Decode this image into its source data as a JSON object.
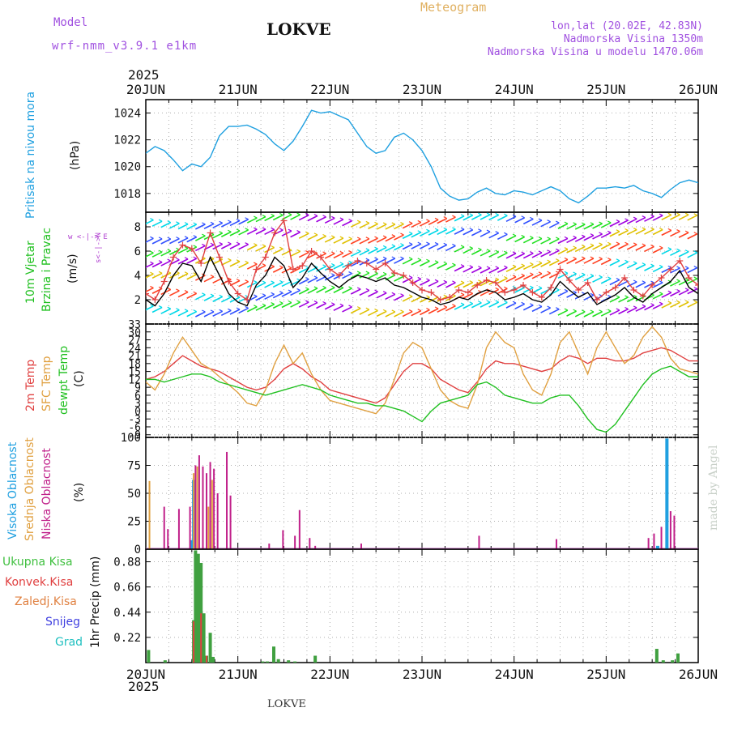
{
  "header": {
    "model_label": "Model",
    "model_name": "wrf-nmm_v3.9.1 e1km",
    "title": "LOKVE",
    "meteogram": "Meteogram",
    "lonlat": "lon,lat (20.02E, 42.83N)",
    "altitude": "Nadmorska Visina 1350m",
    "model_altitude": "Nadmorska Visina u modelu 1470.06m",
    "footer_station": "LOKVE",
    "watermark": "made by Angel",
    "year": "2025"
  },
  "colors": {
    "pressure": "#1fa0e0",
    "wind_speed": "#000000",
    "gust": "#e04040",
    "t2m": "#e04040",
    "tsfc": "#e0a040",
    "dewpt": "#20c020",
    "cloud_high": "#20a0e0",
    "cloud_mid": "#e0a040",
    "cloud_low": "#c0208a",
    "precip_total": "#40a040",
    "precip_conv": "#e04040",
    "grid": "#b0b0b0"
  },
  "panel_labels": {
    "pressure": [
      "Pritisak na nivou mora"
    ],
    "pressure_unit": "(hPa)",
    "wind": [
      "10m Vjetar",
      "Brzina i Pravac"
    ],
    "wind_unit": "(m/s)",
    "wind_rose": "w <-|-> E",
    "wind_rose2": "s<-|->N",
    "temp": [
      "2m Temp",
      "SFC Temp",
      "dewpt Temp"
    ],
    "temp_unit": "(C)",
    "cloud": [
      "Visoka Oblacnost",
      "Srednja Oblacnost",
      "Niska Oblacnost"
    ],
    "cloud_unit": "(%)",
    "precip_legend": [
      "Ukupna Kisa",
      "Konvek.Kisa",
      "Zaledj.Kisa",
      "Snijeg",
      "Grad"
    ],
    "precip_unit": "1hr Precip (mm)"
  },
  "chart_data": [
    {
      "type": "line",
      "name": "pressure",
      "x_unit": "days since 20JUN 00 UTC",
      "x_ticks": [
        "20JUN",
        "21JUN",
        "22JUN",
        "23JUN",
        "24JUN",
        "25JUN",
        "26JUN"
      ],
      "ylabel": "(hPa)",
      "ylim": [
        1016.6,
        1025.0
      ],
      "y_ticks": [
        1018,
        1020,
        1022,
        1024
      ],
      "series": [
        {
          "name": "Pritisak na nivou mora",
          "x": [
            0,
            0.1,
            0.2,
            0.3,
            0.4,
            0.5,
            0.6,
            0.7,
            0.8,
            0.9,
            1.0,
            1.1,
            1.2,
            1.3,
            1.4,
            1.5,
            1.6,
            1.7,
            1.8,
            1.9,
            2.0,
            2.1,
            2.2,
            2.3,
            2.4,
            2.5,
            2.6,
            2.7,
            2.8,
            2.9,
            3.0,
            3.1,
            3.2,
            3.3,
            3.4,
            3.5,
            3.6,
            3.7,
            3.8,
            3.9,
            4.0,
            4.1,
            4.2,
            4.3,
            4.4,
            4.5,
            4.6,
            4.7,
            4.8,
            4.9,
            5.0,
            5.1,
            5.2,
            5.3,
            5.4,
            5.5,
            5.6,
            5.7,
            5.8,
            5.9,
            6.0
          ],
          "values": [
            1021.0,
            1021.5,
            1021.2,
            1020.5,
            1019.7,
            1020.2,
            1020.0,
            1020.7,
            1022.3,
            1023.0,
            1023.0,
            1023.1,
            1022.8,
            1022.4,
            1021.7,
            1021.2,
            1021.9,
            1023.0,
            1024.2,
            1024.0,
            1024.1,
            1023.8,
            1023.5,
            1022.5,
            1021.5,
            1021.0,
            1021.2,
            1022.2,
            1022.5,
            1022.0,
            1021.2,
            1020.0,
            1018.4,
            1017.8,
            1017.5,
            1017.6,
            1018.1,
            1018.4,
            1018.0,
            1017.9,
            1018.2,
            1018.1,
            1017.9,
            1018.2,
            1018.5,
            1018.2,
            1017.6,
            1017.3,
            1017.8,
            1018.4,
            1018.4,
            1018.5,
            1018.4,
            1018.6,
            1018.2,
            1018.0,
            1017.7,
            1018.3,
            1018.8,
            1019.0,
            1018.8
          ]
        }
      ]
    },
    {
      "type": "line",
      "name": "wind",
      "x_ticks": [
        "20JUN",
        "21JUN",
        "22JUN",
        "23JUN",
        "24JUN",
        "25JUN",
        "26JUN"
      ],
      "ylabel": "(m/s)",
      "ylim": [
        0,
        9.2
      ],
      "y_ticks": [
        2,
        4,
        6,
        8
      ],
      "series": [
        {
          "name": "10m Vjetar brzina",
          "x": [
            0,
            0.1,
            0.2,
            0.3,
            0.4,
            0.5,
            0.6,
            0.7,
            0.8,
            0.9,
            1.0,
            1.1,
            1.2,
            1.3,
            1.4,
            1.5,
            1.6,
            1.7,
            1.8,
            1.9,
            2.0,
            2.1,
            2.2,
            2.3,
            2.4,
            2.5,
            2.6,
            2.7,
            2.8,
            2.9,
            3.0,
            3.1,
            3.2,
            3.3,
            3.4,
            3.5,
            3.6,
            3.7,
            3.8,
            3.9,
            4.0,
            4.1,
            4.2,
            4.3,
            4.4,
            4.5,
            4.6,
            4.7,
            4.8,
            4.9,
            5.0,
            5.1,
            5.2,
            5.3,
            5.4,
            5.5,
            5.6,
            5.7,
            5.8,
            5.9,
            6.0
          ],
          "values": [
            2.0,
            1.5,
            2.5,
            4.0,
            5.0,
            4.8,
            3.5,
            5.5,
            4.0,
            2.5,
            1.8,
            1.5,
            3.2,
            4.0,
            5.5,
            4.8,
            3.0,
            3.8,
            5.0,
            4.2,
            3.5,
            3.0,
            3.6,
            4.0,
            3.8,
            3.5,
            3.8,
            3.2,
            3.0,
            2.6,
            2.2,
            2.0,
            1.6,
            1.8,
            2.2,
            2.0,
            2.5,
            2.8,
            2.6,
            2.0,
            2.2,
            2.5,
            2.0,
            1.8,
            2.4,
            3.5,
            2.8,
            2.2,
            2.6,
            1.6,
            2.0,
            2.4,
            3.0,
            2.2,
            1.8,
            2.5,
            3.0,
            3.5,
            4.4,
            3.0,
            2.5
          ]
        },
        {
          "name": "udari vjetra",
          "x": [
            0,
            0.1,
            0.2,
            0.3,
            0.4,
            0.5,
            0.6,
            0.7,
            0.8,
            0.9,
            1.0,
            1.1,
            1.2,
            1.3,
            1.4,
            1.5,
            1.6,
            1.7,
            1.8,
            1.9,
            2.0,
            2.1,
            2.2,
            2.3,
            2.4,
            2.5,
            2.6,
            2.7,
            2.8,
            2.9,
            3.0,
            3.1,
            3.2,
            3.3,
            3.4,
            3.5,
            3.6,
            3.7,
            3.8,
            3.9,
            4.0,
            4.1,
            4.2,
            4.3,
            4.4,
            4.5,
            4.6,
            4.7,
            4.8,
            4.9,
            5.0,
            5.1,
            5.2,
            5.3,
            5.4,
            5.5,
            5.6,
            5.7,
            5.8,
            5.9,
            6.0
          ],
          "values": [
            2.5,
            2.0,
            3.5,
            5.5,
            6.5,
            6.2,
            5.0,
            7.5,
            5.5,
            3.5,
            2.5,
            2.0,
            4.5,
            5.5,
            7.5,
            8.5,
            4.5,
            4.8,
            6.0,
            5.5,
            4.5,
            4.0,
            4.8,
            5.2,
            5.0,
            4.5,
            5.0,
            4.2,
            4.0,
            3.4,
            2.8,
            2.6,
            2.0,
            2.2,
            2.8,
            2.6,
            3.2,
            3.6,
            3.4,
            2.6,
            2.8,
            3.2,
            2.6,
            2.2,
            3.0,
            4.5,
            3.6,
            2.8,
            3.4,
            2.0,
            2.6,
            3.0,
            3.8,
            2.8,
            2.3,
            3.2,
            3.8,
            4.5,
            5.2,
            3.8,
            3.2
          ]
        }
      ]
    },
    {
      "type": "line",
      "name": "temperature",
      "x_ticks": [
        "20JUN",
        "21JUN",
        "22JUN",
        "23JUN",
        "24JUN",
        "25JUN",
        "26JUN"
      ],
      "ylabel": "(C)",
      "ylim": [
        -10,
        33
      ],
      "y_ticks": [
        -9,
        -6,
        -3,
        0,
        3,
        6,
        9,
        12,
        15,
        18,
        21,
        24,
        27,
        30,
        33
      ],
      "series": [
        {
          "name": "2m Temp",
          "x": [
            0,
            0.1,
            0.2,
            0.3,
            0.4,
            0.5,
            0.6,
            0.7,
            0.8,
            0.9,
            1.0,
            1.1,
            1.2,
            1.3,
            1.4,
            1.5,
            1.6,
            1.7,
            1.8,
            1.9,
            2.0,
            2.1,
            2.2,
            2.3,
            2.4,
            2.5,
            2.6,
            2.7,
            2.8,
            2.9,
            3.0,
            3.1,
            3.2,
            3.3,
            3.4,
            3.5,
            3.6,
            3.7,
            3.8,
            3.9,
            4.0,
            4.1,
            4.2,
            4.3,
            4.4,
            4.5,
            4.6,
            4.7,
            4.8,
            4.9,
            5.0,
            5.1,
            5.2,
            5.3,
            5.4,
            5.5,
            5.6,
            5.7,
            5.8,
            5.9,
            6.0
          ],
          "values": [
            12,
            13,
            15,
            18,
            21,
            19,
            17,
            16,
            15,
            13,
            11,
            9,
            8,
            9,
            12,
            16,
            18,
            16,
            13,
            11,
            8,
            7,
            6,
            5,
            4,
            3,
            5,
            10,
            15,
            18,
            18,
            16,
            12,
            10,
            8,
            7,
            11,
            16,
            19,
            18,
            18,
            17,
            16,
            15,
            16,
            19,
            21,
            20,
            18,
            20,
            20,
            19,
            19,
            20,
            22,
            23,
            24,
            23,
            21,
            19,
            19
          ]
        },
        {
          "name": "SFC Temp",
          "x": [
            0,
            0.1,
            0.2,
            0.3,
            0.4,
            0.5,
            0.6,
            0.7,
            0.8,
            0.9,
            1.0,
            1.1,
            1.2,
            1.3,
            1.4,
            1.5,
            1.6,
            1.7,
            1.8,
            1.9,
            2.0,
            2.1,
            2.2,
            2.3,
            2.4,
            2.5,
            2.6,
            2.7,
            2.8,
            2.9,
            3.0,
            3.1,
            3.2,
            3.3,
            3.4,
            3.5,
            3.6,
            3.7,
            3.8,
            3.9,
            4.0,
            4.1,
            4.2,
            4.3,
            4.4,
            4.5,
            4.6,
            4.7,
            4.8,
            4.9,
            5.0,
            5.1,
            5.2,
            5.3,
            5.4,
            5.5,
            5.6,
            5.7,
            5.8,
            5.9,
            6.0
          ],
          "values": [
            11,
            8,
            14,
            22,
            28,
            23,
            18,
            16,
            13,
            10,
            7,
            3,
            2,
            8,
            18,
            25,
            18,
            22,
            14,
            8,
            4,
            3,
            2,
            1,
            0,
            -1,
            3,
            12,
            22,
            26,
            24,
            16,
            8,
            4,
            2,
            1,
            10,
            24,
            30,
            26,
            24,
            14,
            8,
            6,
            14,
            26,
            30,
            22,
            14,
            24,
            30,
            24,
            18,
            21,
            28,
            32,
            28,
            20,
            16,
            15,
            14
          ]
        },
        {
          "name": "dewpt Temp",
          "x": [
            0,
            0.1,
            0.2,
            0.3,
            0.4,
            0.5,
            0.6,
            0.7,
            0.8,
            0.9,
            1.0,
            1.1,
            1.2,
            1.3,
            1.4,
            1.5,
            1.6,
            1.7,
            1.8,
            1.9,
            2.0,
            2.1,
            2.2,
            2.3,
            2.4,
            2.5,
            2.6,
            2.7,
            2.8,
            2.9,
            3.0,
            3.1,
            3.2,
            3.3,
            3.4,
            3.5,
            3.6,
            3.7,
            3.8,
            3.9,
            4.0,
            4.1,
            4.2,
            4.3,
            4.4,
            4.5,
            4.6,
            4.7,
            4.8,
            4.9,
            5.0,
            5.1,
            5.2,
            5.3,
            5.4,
            5.5,
            5.6,
            5.7,
            5.8,
            5.9,
            6.0
          ],
          "values": [
            12,
            12,
            11,
            12,
            13,
            14,
            14,
            13,
            11,
            10,
            9,
            8,
            7,
            6,
            7,
            8,
            9,
            10,
            9,
            8,
            6,
            5,
            4,
            3,
            3,
            2,
            2,
            1,
            0,
            -2,
            -4,
            0,
            3,
            4,
            5,
            6,
            10,
            11,
            9,
            6,
            5,
            4,
            3,
            3,
            5,
            6,
            6,
            2,
            -3,
            -7,
            -8,
            -5,
            0,
            5,
            10,
            14,
            16,
            17,
            15,
            13,
            13
          ]
        }
      ]
    },
    {
      "type": "bar",
      "name": "cloud",
      "x_ticks": [
        "20JUN",
        "21JUN",
        "22JUN",
        "23JUN",
        "24JUN",
        "25JUN",
        "26JUN"
      ],
      "ylabel": "(%)",
      "ylim": [
        0,
        100
      ],
      "y_ticks": [
        0,
        25,
        50,
        75,
        100
      ],
      "series": [
        {
          "name": "Visoka Oblacnost",
          "x": [
            0.5,
            0.52,
            5.56,
            5.66
          ],
          "values": [
            8,
            62,
            3,
            99
          ]
        },
        {
          "name": "Srednja Oblacnost",
          "x": [
            0.04,
            0.52,
            0.56,
            0.62,
            0.68,
            0.72
          ],
          "values": [
            61,
            68,
            74,
            62,
            38,
            62
          ]
        },
        {
          "name": "Niska Oblacnost",
          "x": [
            0.2,
            0.24,
            0.36,
            0.48,
            0.54,
            0.58,
            0.62,
            0.66,
            0.7,
            0.74,
            0.78,
            0.88,
            0.92,
            1.34,
            1.49,
            1.62,
            1.67,
            1.78,
            1.84,
            2.34,
            3.62,
            4.46,
            5.46,
            5.52,
            5.6,
            5.7,
            5.74
          ],
          "values": [
            38,
            18,
            36,
            38,
            75,
            84,
            74,
            68,
            78,
            72,
            50,
            87,
            48,
            5,
            17,
            12,
            35,
            10,
            3,
            5,
            12,
            9,
            10,
            14,
            20,
            34,
            30
          ]
        }
      ]
    },
    {
      "type": "bar",
      "name": "precip",
      "x_ticks": [
        "20JUN",
        "21JUN",
        "22JUN",
        "23JUN",
        "24JUN",
        "25JUN",
        "26JUN"
      ],
      "ylabel": "1hr Precip (mm)",
      "ylim": [
        0,
        0.99
      ],
      "y_ticks": [
        0.22,
        0.44,
        0.66,
        0.88
      ],
      "series": [
        {
          "name": "Ukupna Kisa",
          "x": [
            0.03,
            0.21,
            0.52,
            0.54,
            0.57,
            0.6,
            0.63,
            0.66,
            0.7,
            0.73,
            1.27,
            1.32,
            1.39,
            1.44,
            1.55,
            1.62,
            1.84,
            5.55,
            5.62,
            5.72,
            5.78
          ],
          "values": [
            0.11,
            0.02,
            0.37,
            0.98,
            0.95,
            0.87,
            0.43,
            0.06,
            0.26,
            0.05,
            0.01,
            0.01,
            0.14,
            0.03,
            0.02,
            0.01,
            0.06,
            0.12,
            0.02,
            0.02,
            0.08
          ]
        },
        {
          "name": "Konvek.Kisa",
          "x": [
            0.52,
            0.6,
            0.66
          ],
          "values": [
            0.36,
            0.43,
            0.06
          ]
        }
      ]
    }
  ]
}
